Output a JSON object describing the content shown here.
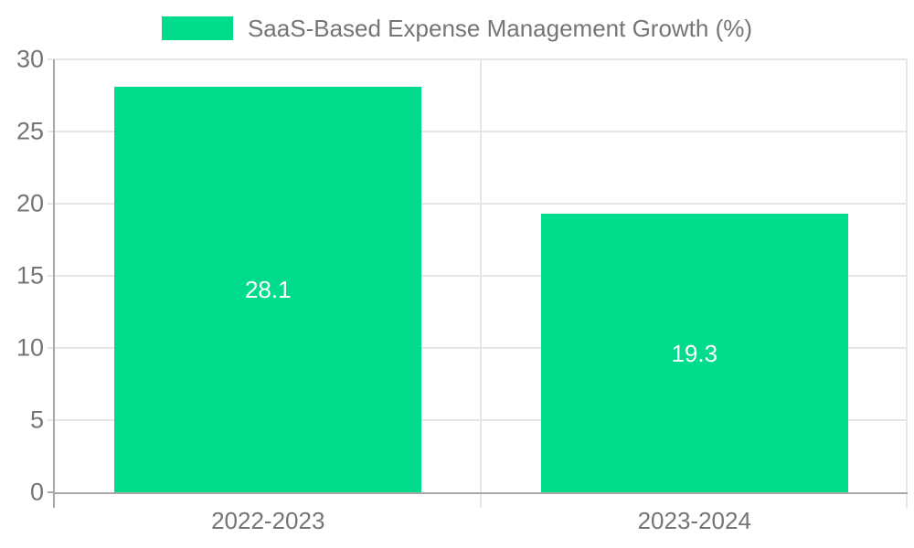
{
  "chart_data": {
    "type": "bar",
    "legend": {
      "label": "SaaS-Based Expense Management Growth (%)",
      "position": "top-center"
    },
    "categories": [
      "2022-2023",
      "2023-2024"
    ],
    "values": [
      28.1,
      19.3
    ],
    "ylim": [
      0,
      30
    ],
    "yticks": [
      0,
      5,
      10,
      15,
      20,
      25,
      30
    ],
    "grid": true,
    "bar_band_fraction": 0.72,
    "colors": {
      "bar": "#00dc8c",
      "grid": "#e6e6e6",
      "axis": "#a8a8a8",
      "tick_text": "#757575",
      "bar_label_text": "#ffffff",
      "background": "#ffffff"
    }
  }
}
